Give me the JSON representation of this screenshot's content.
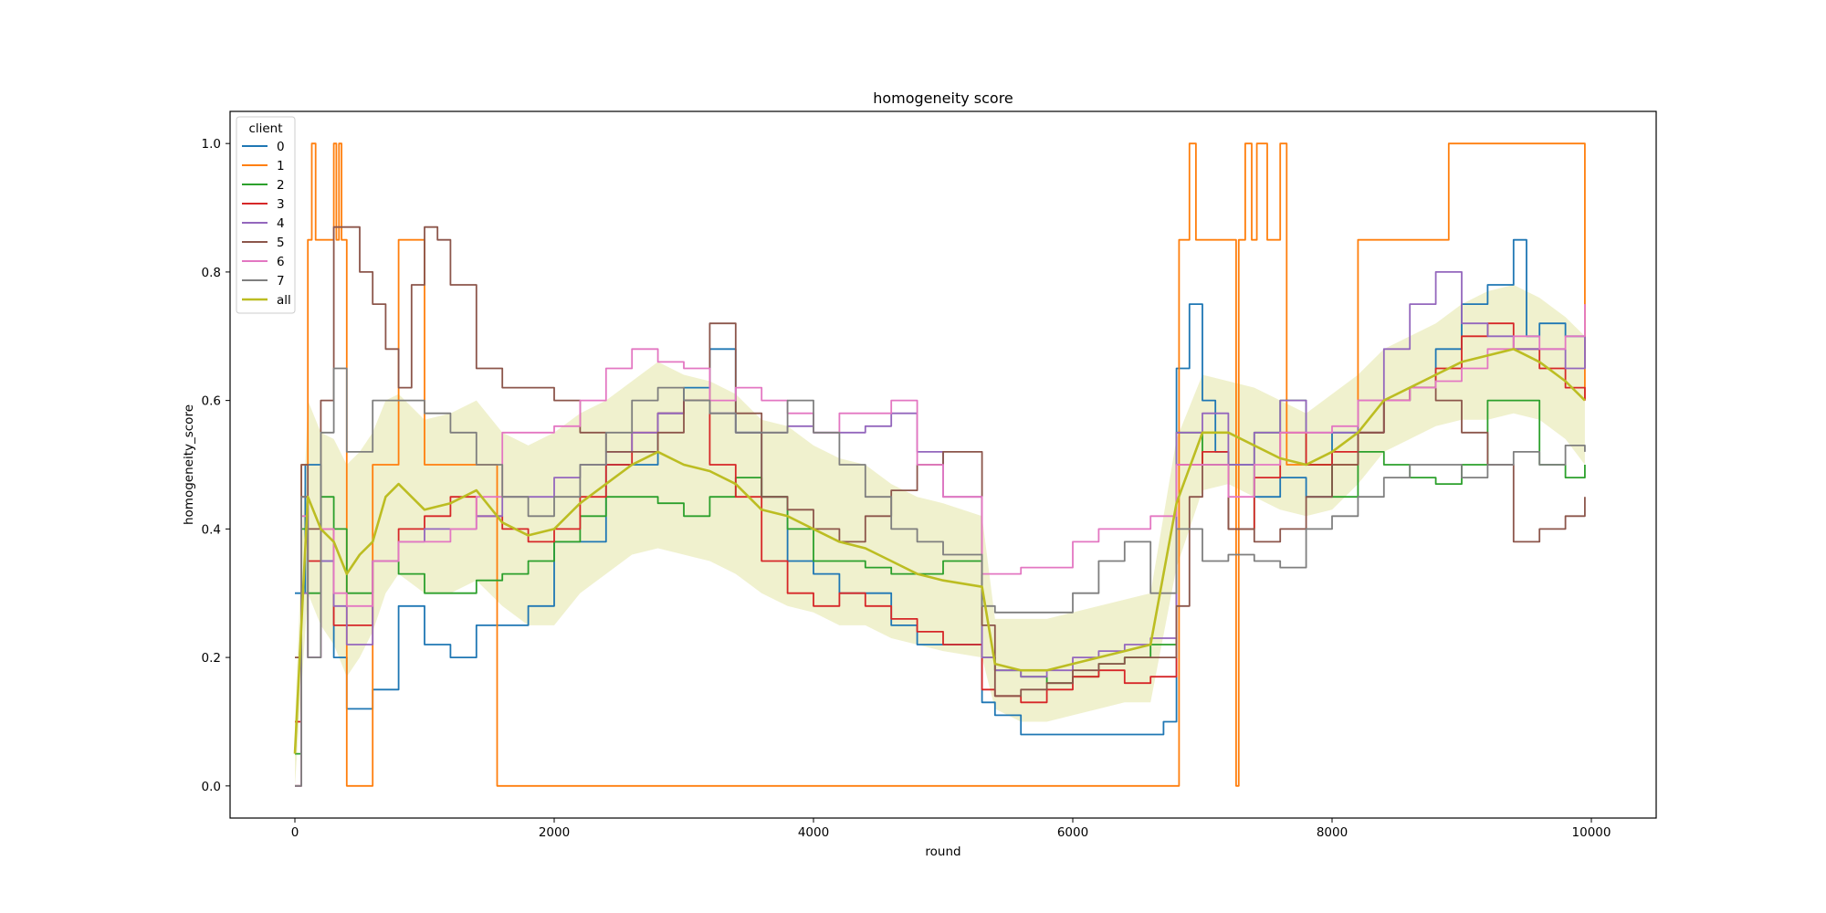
{
  "chart_data": {
    "type": "line",
    "title": "homogeneity score",
    "xlabel": "round",
    "ylabel": "homogeneity_score",
    "xlim": [
      -500,
      10500
    ],
    "ylim": [
      -0.05,
      1.05
    ],
    "xticks": [
      0,
      2000,
      4000,
      6000,
      8000,
      10000
    ],
    "xtick_labels": [
      "0",
      "2000",
      "4000",
      "6000",
      "8000",
      "10000"
    ],
    "yticks": [
      0.0,
      0.2,
      0.4,
      0.6,
      0.8,
      1.0
    ],
    "ytick_labels": [
      "0.0",
      "0.2",
      "0.4",
      "0.6",
      "0.8",
      "1.0"
    ],
    "grid": false,
    "legend": {
      "title": "client",
      "placement": "top-left"
    },
    "series": [
      {
        "name": "0",
        "color": "#1f77b4",
        "style": "step",
        "x": [
          0,
          80,
          200,
          300,
          400,
          600,
          800,
          1000,
          1200,
          1400,
          1600,
          1800,
          2000,
          2400,
          2800,
          3000,
          3200,
          3400,
          3600,
          3800,
          4000,
          4200,
          4400,
          4600,
          4800,
          5000,
          5300,
          5400,
          5600,
          6000,
          6400,
          6700,
          6800,
          6900,
          7000,
          7100,
          7200,
          7400,
          7600,
          7800,
          8000,
          8200,
          8400,
          8600,
          8800,
          9000,
          9200,
          9400,
          9500,
          9600,
          9800,
          9950
        ],
        "y": [
          0.3,
          0.5,
          0.35,
          0.2,
          0.12,
          0.15,
          0.28,
          0.22,
          0.2,
          0.25,
          0.25,
          0.28,
          0.38,
          0.5,
          0.58,
          0.62,
          0.68,
          0.55,
          0.45,
          0.35,
          0.33,
          0.3,
          0.3,
          0.25,
          0.22,
          0.22,
          0.13,
          0.11,
          0.08,
          0.08,
          0.08,
          0.1,
          0.65,
          0.75,
          0.6,
          0.52,
          0.5,
          0.45,
          0.48,
          0.45,
          0.55,
          0.55,
          0.6,
          0.62,
          0.68,
          0.75,
          0.78,
          0.85,
          0.7,
          0.72,
          0.7,
          0.65
        ]
      },
      {
        "name": "1",
        "color": "#ff7f0e",
        "style": "step",
        "x": [
          0,
          50,
          100,
          130,
          160,
          300,
          320,
          340,
          360,
          400,
          600,
          800,
          1000,
          1200,
          1400,
          1550,
          1560,
          6820,
          6850,
          6900,
          6950,
          7000,
          7100,
          7200,
          7260,
          7280,
          7330,
          7380,
          7420,
          7500,
          7600,
          7650,
          7700,
          8000,
          8200,
          8400,
          8800,
          8900,
          9400,
          9950
        ],
        "y": [
          0.0,
          0.5,
          0.85,
          1.0,
          0.85,
          1.0,
          0.85,
          1.0,
          0.85,
          0.0,
          0.5,
          0.85,
          0.5,
          0.5,
          0.5,
          0.5,
          0.0,
          0.85,
          0.85,
          1.0,
          0.85,
          0.85,
          0.85,
          0.85,
          0.0,
          0.85,
          1.0,
          0.85,
          1.0,
          0.85,
          1.0,
          0.5,
          0.5,
          0.5,
          0.85,
          0.85,
          0.85,
          1.0,
          1.0,
          0.6
        ]
      },
      {
        "name": "2",
        "color": "#2ca02c",
        "style": "step",
        "x": [
          0,
          50,
          100,
          200,
          300,
          400,
          600,
          800,
          1000,
          1200,
          1400,
          1600,
          1800,
          2000,
          2200,
          2400,
          2600,
          2800,
          3000,
          3200,
          3400,
          3600,
          3800,
          4000,
          4200,
          4400,
          4600,
          4800,
          5000,
          5300,
          5400,
          5600,
          5800,
          6000,
          6200,
          6400,
          6600,
          6800,
          7000,
          7200,
          7400,
          7600,
          7800,
          8000,
          8200,
          8400,
          8600,
          8800,
          9000,
          9200,
          9400,
          9600,
          9800,
          9950
        ],
        "y": [
          0.05,
          0.4,
          0.3,
          0.45,
          0.4,
          0.3,
          0.35,
          0.33,
          0.3,
          0.3,
          0.32,
          0.33,
          0.35,
          0.38,
          0.42,
          0.45,
          0.45,
          0.44,
          0.42,
          0.45,
          0.48,
          0.45,
          0.4,
          0.35,
          0.35,
          0.34,
          0.33,
          0.33,
          0.35,
          0.2,
          0.18,
          0.17,
          0.16,
          0.17,
          0.19,
          0.2,
          0.22,
          0.55,
          0.5,
          0.4,
          0.55,
          0.6,
          0.5,
          0.45,
          0.52,
          0.5,
          0.48,
          0.47,
          0.5,
          0.6,
          0.6,
          0.5,
          0.48,
          0.5
        ]
      },
      {
        "name": "3",
        "color": "#d62728",
        "style": "step",
        "x": [
          0,
          50,
          100,
          200,
          300,
          400,
          600,
          800,
          1000,
          1200,
          1400,
          1600,
          1800,
          2000,
          2200,
          2400,
          2600,
          2800,
          3000,
          3200,
          3400,
          3600,
          3800,
          4000,
          4200,
          4400,
          4600,
          4800,
          5000,
          5300,
          5400,
          5600,
          5800,
          6000,
          6200,
          6400,
          6600,
          6800,
          7000,
          7200,
          7400,
          7600,
          7800,
          8000,
          8200,
          8400,
          8600,
          8800,
          9000,
          9200,
          9400,
          9600,
          9800,
          9950
        ],
        "y": [
          0.1,
          0.45,
          0.35,
          0.4,
          0.25,
          0.25,
          0.35,
          0.4,
          0.42,
          0.45,
          0.42,
          0.4,
          0.38,
          0.4,
          0.45,
          0.5,
          0.55,
          0.58,
          0.6,
          0.5,
          0.45,
          0.35,
          0.3,
          0.28,
          0.3,
          0.28,
          0.26,
          0.24,
          0.22,
          0.15,
          0.14,
          0.13,
          0.15,
          0.17,
          0.18,
          0.16,
          0.17,
          0.5,
          0.52,
          0.4,
          0.48,
          0.55,
          0.5,
          0.52,
          0.55,
          0.6,
          0.62,
          0.65,
          0.7,
          0.72,
          0.68,
          0.65,
          0.62,
          0.6
        ]
      },
      {
        "name": "4",
        "color": "#9467bd",
        "style": "step",
        "x": [
          0,
          50,
          100,
          200,
          300,
          400,
          600,
          800,
          1000,
          1200,
          1400,
          1600,
          1800,
          2000,
          2200,
          2400,
          2600,
          2800,
          3000,
          3200,
          3400,
          3600,
          3800,
          4000,
          4200,
          4400,
          4600,
          4800,
          5000,
          5300,
          5400,
          5600,
          5800,
          6000,
          6200,
          6400,
          6600,
          6800,
          7000,
          7200,
          7400,
          7600,
          7800,
          8000,
          8200,
          8400,
          8600,
          8800,
          9000,
          9200,
          9400,
          9600,
          9800,
          9950
        ],
        "y": [
          0.0,
          0.3,
          0.2,
          0.35,
          0.28,
          0.22,
          0.35,
          0.38,
          0.4,
          0.4,
          0.42,
          0.45,
          0.45,
          0.48,
          0.5,
          0.52,
          0.55,
          0.58,
          0.6,
          0.58,
          0.55,
          0.55,
          0.56,
          0.55,
          0.55,
          0.56,
          0.58,
          0.52,
          0.45,
          0.2,
          0.18,
          0.17,
          0.18,
          0.2,
          0.21,
          0.22,
          0.23,
          0.55,
          0.58,
          0.5,
          0.55,
          0.6,
          0.55,
          0.55,
          0.6,
          0.68,
          0.75,
          0.8,
          0.72,
          0.7,
          0.68,
          0.68,
          0.65,
          0.7
        ]
      },
      {
        "name": "5",
        "color": "#8c564b",
        "style": "step",
        "x": [
          0,
          50,
          100,
          200,
          300,
          400,
          500,
          600,
          700,
          800,
          900,
          1000,
          1100,
          1200,
          1400,
          1600,
          1800,
          2000,
          2200,
          2400,
          2600,
          2800,
          3000,
          3200,
          3400,
          3600,
          3800,
          4000,
          4200,
          4400,
          4600,
          4800,
          5000,
          5300,
          5400,
          5600,
          5800,
          6000,
          6200,
          6400,
          6600,
          6800,
          6900,
          7000,
          7200,
          7400,
          7600,
          7800,
          8000,
          8200,
          8400,
          8600,
          8800,
          9000,
          9200,
          9400,
          9600,
          9800,
          9950
        ],
        "y": [
          0.2,
          0.5,
          0.4,
          0.6,
          0.87,
          0.87,
          0.8,
          0.75,
          0.68,
          0.62,
          0.78,
          0.87,
          0.85,
          0.78,
          0.65,
          0.62,
          0.62,
          0.6,
          0.55,
          0.52,
          0.52,
          0.55,
          0.6,
          0.72,
          0.58,
          0.45,
          0.43,
          0.4,
          0.38,
          0.42,
          0.46,
          0.5,
          0.52,
          0.25,
          0.14,
          0.15,
          0.16,
          0.18,
          0.19,
          0.2,
          0.2,
          0.28,
          0.45,
          0.5,
          0.4,
          0.38,
          0.4,
          0.45,
          0.5,
          0.55,
          0.6,
          0.62,
          0.6,
          0.55,
          0.5,
          0.38,
          0.4,
          0.42,
          0.45
        ]
      },
      {
        "name": "6",
        "color": "#e377c2",
        "style": "step",
        "x": [
          0,
          50,
          100,
          200,
          300,
          400,
          600,
          800,
          1000,
          1200,
          1400,
          1600,
          1800,
          2000,
          2200,
          2400,
          2600,
          2800,
          3000,
          3200,
          3400,
          3600,
          3800,
          4000,
          4200,
          4400,
          4600,
          4800,
          5000,
          5300,
          5400,
          5600,
          5800,
          6000,
          6200,
          6400,
          6600,
          6800,
          7000,
          7200,
          7400,
          7600,
          7800,
          8000,
          8200,
          8400,
          8600,
          8800,
          9000,
          9200,
          9400,
          9600,
          9800,
          9950
        ],
        "y": [
          0.0,
          0.42,
          0.2,
          0.4,
          0.3,
          0.28,
          0.35,
          0.38,
          0.38,
          0.4,
          0.45,
          0.55,
          0.55,
          0.56,
          0.6,
          0.65,
          0.68,
          0.66,
          0.65,
          0.6,
          0.62,
          0.6,
          0.58,
          0.55,
          0.58,
          0.58,
          0.6,
          0.5,
          0.45,
          0.33,
          0.33,
          0.34,
          0.34,
          0.38,
          0.4,
          0.4,
          0.42,
          0.5,
          0.5,
          0.45,
          0.5,
          0.55,
          0.55,
          0.56,
          0.6,
          0.6,
          0.62,
          0.63,
          0.65,
          0.68,
          0.7,
          0.68,
          0.7,
          0.75
        ]
      },
      {
        "name": "7",
        "color": "#7f7f7f",
        "style": "step",
        "x": [
          0,
          50,
          100,
          200,
          300,
          400,
          600,
          800,
          1000,
          1200,
          1400,
          1600,
          1800,
          2000,
          2200,
          2400,
          2600,
          2800,
          3000,
          3200,
          3400,
          3600,
          3800,
          4000,
          4200,
          4400,
          4600,
          4800,
          5000,
          5300,
          5400,
          5600,
          5800,
          6000,
          6200,
          6400,
          6600,
          6800,
          7000,
          7200,
          7400,
          7600,
          7800,
          8000,
          8200,
          8400,
          8600,
          8800,
          9000,
          9200,
          9400,
          9600,
          9800,
          9950
        ],
        "y": [
          0.0,
          0.45,
          0.2,
          0.55,
          0.65,
          0.52,
          0.6,
          0.6,
          0.58,
          0.55,
          0.5,
          0.45,
          0.42,
          0.45,
          0.5,
          0.55,
          0.6,
          0.62,
          0.6,
          0.58,
          0.55,
          0.55,
          0.6,
          0.55,
          0.5,
          0.45,
          0.4,
          0.38,
          0.36,
          0.28,
          0.27,
          0.27,
          0.27,
          0.3,
          0.35,
          0.38,
          0.3,
          0.4,
          0.35,
          0.36,
          0.35,
          0.34,
          0.4,
          0.42,
          0.45,
          0.48,
          0.5,
          0.5,
          0.48,
          0.5,
          0.52,
          0.5,
          0.53,
          0.52
        ]
      },
      {
        "name": "all",
        "color": "#bcbd22",
        "style": "line",
        "x": [
          0,
          50,
          100,
          200,
          300,
          400,
          500,
          600,
          700,
          800,
          1000,
          1200,
          1400,
          1600,
          1800,
          2000,
          2200,
          2400,
          2600,
          2800,
          3000,
          3200,
          3400,
          3600,
          3800,
          4000,
          4200,
          4400,
          4600,
          4800,
          5000,
          5300,
          5400,
          5600,
          5800,
          6000,
          6200,
          6400,
          6600,
          6800,
          7000,
          7200,
          7400,
          7600,
          7800,
          8000,
          8200,
          8400,
          8600,
          8800,
          9000,
          9200,
          9400,
          9600,
          9800,
          9950
        ],
        "y": [
          0.05,
          0.25,
          0.45,
          0.4,
          0.38,
          0.33,
          0.36,
          0.38,
          0.45,
          0.47,
          0.43,
          0.44,
          0.46,
          0.41,
          0.39,
          0.4,
          0.44,
          0.47,
          0.5,
          0.52,
          0.5,
          0.49,
          0.47,
          0.43,
          0.42,
          0.4,
          0.38,
          0.37,
          0.35,
          0.33,
          0.32,
          0.31,
          0.19,
          0.18,
          0.18,
          0.19,
          0.2,
          0.21,
          0.22,
          0.44,
          0.55,
          0.55,
          0.53,
          0.51,
          0.5,
          0.52,
          0.55,
          0.6,
          0.62,
          0.64,
          0.66,
          0.67,
          0.68,
          0.66,
          0.63,
          0.6
        ],
        "band_low": [
          0.0,
          0.15,
          0.3,
          0.25,
          0.22,
          0.17,
          0.2,
          0.24,
          0.3,
          0.33,
          0.3,
          0.3,
          0.32,
          0.28,
          0.25,
          0.25,
          0.3,
          0.33,
          0.36,
          0.37,
          0.36,
          0.35,
          0.33,
          0.3,
          0.28,
          0.27,
          0.25,
          0.25,
          0.23,
          0.22,
          0.21,
          0.2,
          0.12,
          0.1,
          0.1,
          0.11,
          0.12,
          0.13,
          0.13,
          0.34,
          0.46,
          0.47,
          0.45,
          0.43,
          0.42,
          0.43,
          0.47,
          0.52,
          0.54,
          0.56,
          0.57,
          0.57,
          0.58,
          0.57,
          0.54,
          0.5
        ],
        "band_high": [
          0.1,
          0.35,
          0.6,
          0.55,
          0.54,
          0.5,
          0.52,
          0.55,
          0.6,
          0.61,
          0.57,
          0.58,
          0.6,
          0.55,
          0.53,
          0.55,
          0.58,
          0.6,
          0.63,
          0.66,
          0.64,
          0.63,
          0.61,
          0.57,
          0.56,
          0.53,
          0.51,
          0.5,
          0.47,
          0.45,
          0.44,
          0.42,
          0.26,
          0.26,
          0.26,
          0.27,
          0.28,
          0.29,
          0.3,
          0.54,
          0.64,
          0.63,
          0.62,
          0.6,
          0.58,
          0.61,
          0.64,
          0.68,
          0.7,
          0.72,
          0.75,
          0.77,
          0.78,
          0.76,
          0.73,
          0.7
        ]
      }
    ]
  }
}
